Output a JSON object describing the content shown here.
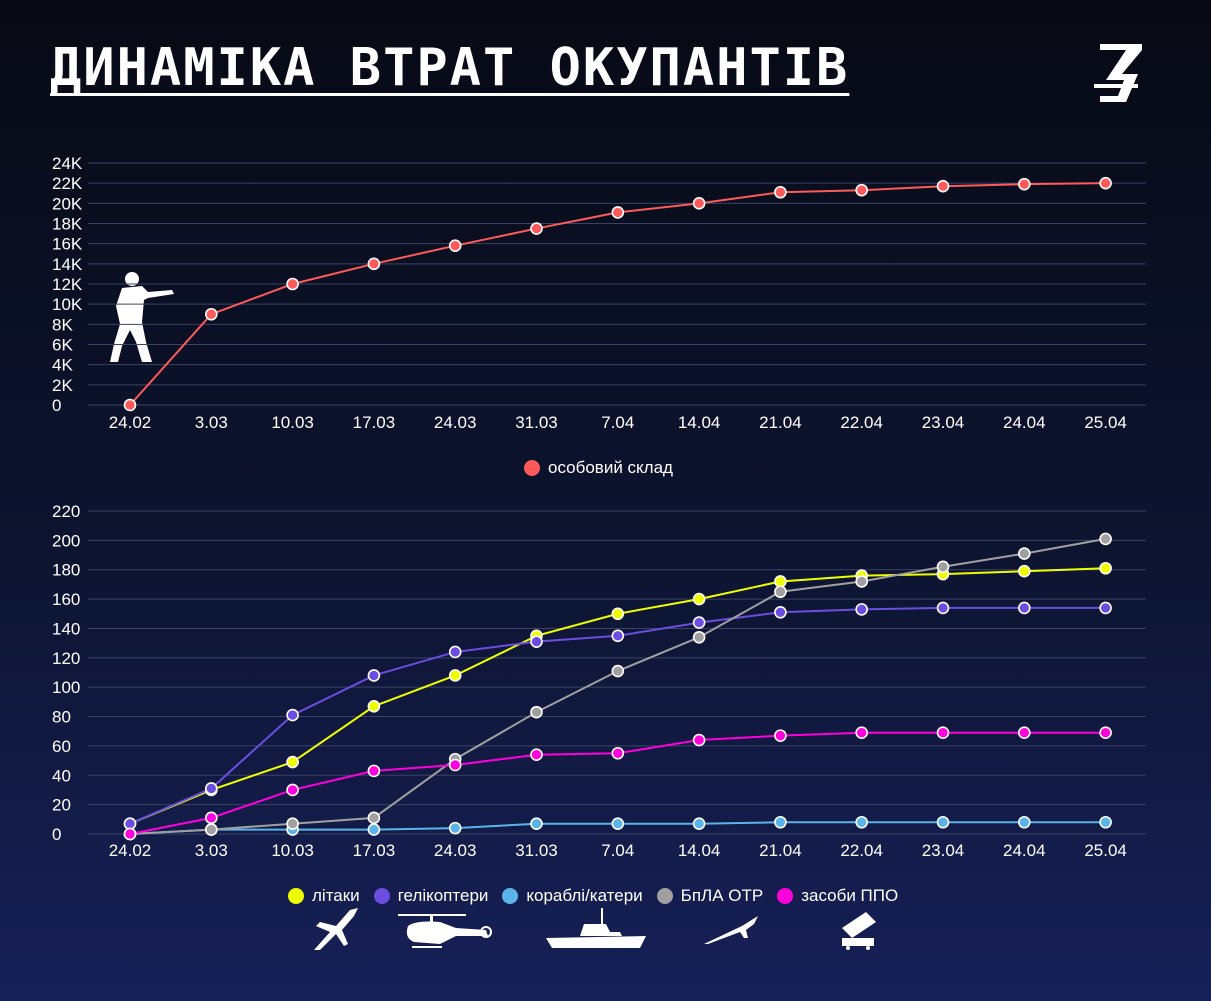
{
  "title": "ДИНАМІКА ВТРАТ ОКУПАНТІВ",
  "logo_text": "З",
  "chart_data": [
    {
      "type": "line",
      "title": "",
      "xlabel": "",
      "ylabel": "",
      "categories": [
        "24.02",
        "3.03",
        "10.03",
        "17.03",
        "24.03",
        "31.03",
        "7.04",
        "14.04",
        "21.04",
        "22.04",
        "23.04",
        "24.04",
        "25.04"
      ],
      "yticks": [
        "0",
        "2K",
        "4K",
        "6K",
        "8K",
        "10K",
        "12K",
        "14K",
        "16K",
        "18K",
        "20K",
        "22K",
        "24K"
      ],
      "ylim": [
        0,
        24000
      ],
      "grid": true,
      "legend_position": "bottom-center",
      "series": [
        {
          "name": "особовий склад",
          "color": "#ff5a5a",
          "values": [
            0,
            9000,
            12000,
            14000,
            15800,
            17500,
            19100,
            20000,
            21100,
            21300,
            21700,
            21900,
            22000
          ]
        }
      ]
    },
    {
      "type": "line",
      "title": "",
      "xlabel": "",
      "ylabel": "",
      "categories": [
        "24.02",
        "3.03",
        "10.03",
        "17.03",
        "24.03",
        "31.03",
        "7.04",
        "14.04",
        "21.04",
        "22.04",
        "23.04",
        "24.04",
        "25.04"
      ],
      "yticks": [
        "0",
        "20",
        "40",
        "60",
        "80",
        "100",
        "120",
        "140",
        "160",
        "180",
        "200",
        "220"
      ],
      "ylim": [
        0,
        220
      ],
      "grid": true,
      "legend_position": "bottom-center",
      "series": [
        {
          "name": "літаки",
          "color": "#f0ff00",
          "values": [
            7,
            30,
            49,
            87,
            108,
            135,
            150,
            160,
            172,
            176,
            177,
            179,
            181
          ]
        },
        {
          "name": "гелікоптери",
          "color": "#6b4de0",
          "values": [
            7,
            31,
            81,
            108,
            124,
            131,
            135,
            144,
            151,
            153,
            154,
            154,
            154
          ]
        },
        {
          "name": "кораблі/катери",
          "color": "#5ab4ea",
          "values": [
            0,
            3,
            3,
            3,
            4,
            7,
            7,
            7,
            8,
            8,
            8,
            8,
            8
          ]
        },
        {
          "name": "БпЛА ОТР",
          "color": "#a0a0a0",
          "values": [
            0,
            3,
            7,
            11,
            51,
            83,
            111,
            134,
            165,
            172,
            182,
            191,
            201
          ]
        },
        {
          "name": "засоби ППО",
          "color": "#ff00dd",
          "values": [
            0,
            11,
            30,
            43,
            47,
            54,
            55,
            64,
            67,
            69,
            69,
            69,
            69
          ]
        }
      ]
    }
  ]
}
